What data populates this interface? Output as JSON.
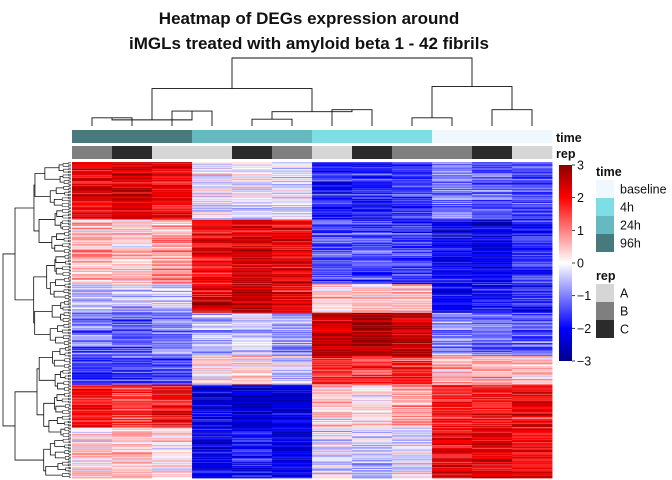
{
  "chart_data": {
    "type": "heatmap",
    "title_lines": [
      "Heatmap of DEGs expression around",
      "iMGLs treated with amyloid beta 1 - 42 fibrils"
    ],
    "color_scale": {
      "min": -3,
      "max": 3,
      "ticks": [
        3,
        2,
        1,
        0,
        -1,
        -2,
        -3
      ],
      "low_color": "#0000ff",
      "mid_color": "#ffffff",
      "high_color": "#ff0000",
      "dark_low_color": "#00008b",
      "dark_high_color": "#8b0000"
    },
    "column_annotations": {
      "time": {
        "label": "time",
        "values": [
          "96h",
          "96h",
          "96h",
          "24h",
          "24h",
          "24h",
          "4h",
          "4h",
          "4h",
          "baseline",
          "baseline",
          "baseline"
        ]
      },
      "rep": {
        "label": "rep",
        "values": [
          "B",
          "C",
          "A",
          "A",
          "C",
          "B",
          "A",
          "C",
          "B",
          "B",
          "C",
          "A"
        ]
      }
    },
    "legends": {
      "time": {
        "title": "time",
        "items": [
          {
            "label": "baseline",
            "color": "#f0f8ff"
          },
          {
            "label": "4h",
            "color": "#7fdde6"
          },
          {
            "label": "24h",
            "color": "#66b8c1"
          },
          {
            "label": "96h",
            "color": "#477a7c"
          }
        ]
      },
      "rep": {
        "title": "rep",
        "items": [
          {
            "label": "A",
            "color": "#d6d6d6"
          },
          {
            "label": "B",
            "color": "#7f7f7f"
          },
          {
            "label": "C",
            "color": "#2b2b2b"
          }
        ]
      }
    },
    "column_dendrogram": {
      "merges": [
        [
          0,
          1
        ],
        [
          2,
          3
        ],
        [
          4,
          5
        ],
        [
          6,
          7
        ],
        [
          8,
          9
        ],
        [
          10,
          11
        ],
        [
          12,
          13
        ],
        [
          14,
          15
        ],
        [
          16,
          17
        ],
        [
          18,
          19
        ],
        [
          20,
          21
        ]
      ],
      "heights": [
        0.12,
        0.22,
        0.1,
        0.24,
        0.12,
        0.24,
        0.09,
        0.21,
        0.58,
        0.55,
        1.0
      ]
    },
    "row_blocks": [
      {
        "rows": 80,
        "pattern": [
          2.2,
          2.2,
          2.0,
          -0.2,
          -0.1,
          -0.3,
          -1.8,
          -1.7,
          -1.6,
          -1.0,
          -1.2,
          -1.4
        ]
      },
      {
        "rows": 90,
        "pattern": [
          0.6,
          0.3,
          0.8,
          2.0,
          2.3,
          2.1,
          -1.3,
          -1.4,
          -1.5,
          -2.0,
          -2.2,
          -1.6
        ]
      },
      {
        "rows": 40,
        "pattern": [
          -0.6,
          -0.4,
          -0.5,
          2.2,
          2.4,
          2.0,
          0.4,
          0.3,
          0.6,
          -2.1,
          -1.9,
          -1.8
        ]
      },
      {
        "rows": 60,
        "pattern": [
          -1.1,
          -1.2,
          -0.9,
          -0.6,
          -0.4,
          -0.7,
          2.5,
          2.7,
          2.4,
          -0.9,
          -1.1,
          -1.3
        ]
      },
      {
        "rows": 40,
        "pattern": [
          -1.6,
          -1.5,
          -1.4,
          0.2,
          0.3,
          -0.2,
          1.7,
          1.5,
          1.6,
          0.6,
          0.7,
          0.5
        ]
      },
      {
        "rows": 60,
        "pattern": [
          1.8,
          1.6,
          1.9,
          -2.2,
          -2.4,
          -2.3,
          0.5,
          0.3,
          0.7,
          1.7,
          1.9,
          2.0
        ]
      },
      {
        "rows": 70,
        "pattern": [
          0.3,
          0.5,
          0.2,
          -2.0,
          -1.8,
          -2.1,
          -0.2,
          -0.4,
          -0.1,
          2.1,
          2.3,
          1.9
        ]
      }
    ]
  }
}
